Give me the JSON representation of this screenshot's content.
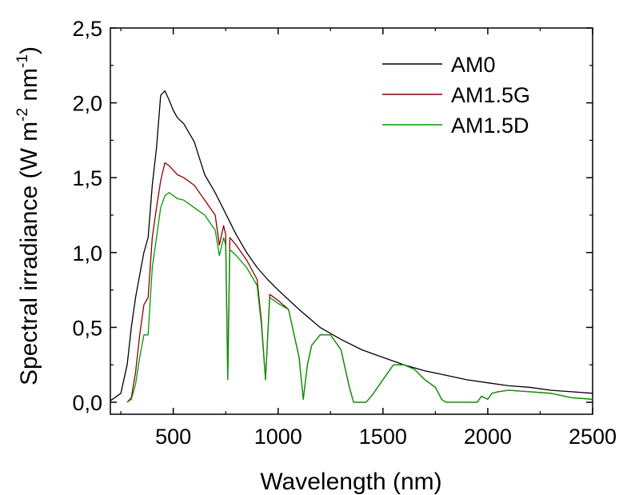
{
  "chart_data": {
    "type": "line",
    "title": "",
    "xlabel": "Wavelength (nm)",
    "ylabel": {
      "prefix": "Spectral irradiance (W m",
      "exp1": "-2",
      "middle": " nm",
      "exp2": "-1",
      "suffix": ")"
    },
    "xlim": [
      200,
      2500
    ],
    "ylim": [
      -0.08,
      2.5
    ],
    "x_ticks": [
      500,
      1000,
      1500,
      2000,
      2500
    ],
    "x_tick_labels": [
      "500",
      "1000",
      "1500",
      "2000",
      "2500"
    ],
    "y_ticks": [
      0.0,
      0.5,
      1.0,
      1.5,
      2.0,
      2.5
    ],
    "y_tick_labels": [
      "0,0",
      "0,5",
      "1,0",
      "1,5",
      "2,0",
      "2,5"
    ],
    "grid": false,
    "legend_position": "top-right",
    "series": [
      {
        "name": "AM0",
        "color": "#000000",
        "x": [
          200,
          250,
          280,
          300,
          320,
          340,
          360,
          380,
          400,
          420,
          440,
          460,
          480,
          500,
          520,
          550,
          600,
          650,
          700,
          750,
          800,
          850,
          900,
          950,
          1000,
          1100,
          1200,
          1300,
          1400,
          1500,
          1600,
          1700,
          1800,
          1900,
          2000,
          2100,
          2200,
          2300,
          2400,
          2500
        ],
        "y": [
          0.01,
          0.06,
          0.25,
          0.5,
          0.7,
          0.85,
          1.0,
          1.1,
          1.45,
          1.7,
          2.05,
          2.08,
          2.02,
          1.95,
          1.9,
          1.86,
          1.74,
          1.52,
          1.4,
          1.26,
          1.12,
          1.0,
          0.9,
          0.82,
          0.75,
          0.62,
          0.5,
          0.42,
          0.35,
          0.3,
          0.25,
          0.21,
          0.18,
          0.15,
          0.13,
          0.11,
          0.1,
          0.08,
          0.07,
          0.06
        ]
      },
      {
        "name": "AM1.5G",
        "color": "#8b0000",
        "x": [
          280,
          300,
          320,
          340,
          360,
          380,
          400,
          420,
          440,
          460,
          480,
          500,
          520,
          550,
          600,
          650,
          700,
          720,
          740,
          750,
          760,
          770,
          800,
          850,
          900,
          920,
          940,
          960,
          1000,
          1050,
          1100,
          1120,
          1140,
          1160,
          1200,
          1250,
          1300,
          1340,
          1360,
          1400,
          1420,
          1450,
          1500,
          1550,
          1600,
          1650,
          1700,
          1750,
          1780,
          1800,
          1950,
          1970,
          2000,
          2020,
          2050,
          2100,
          2200,
          2300,
          2400,
          2500
        ],
        "y": [
          0.0,
          0.03,
          0.2,
          0.45,
          0.65,
          0.7,
          1.1,
          1.3,
          1.48,
          1.6,
          1.58,
          1.55,
          1.52,
          1.5,
          1.45,
          1.35,
          1.25,
          1.05,
          1.18,
          1.12,
          0.15,
          1.1,
          1.05,
          0.95,
          0.82,
          0.55,
          0.15,
          0.72,
          0.68,
          0.62,
          0.3,
          0.02,
          0.25,
          0.38,
          0.45,
          0.45,
          0.35,
          0.1,
          0.0,
          0.0,
          0.0,
          0.05,
          0.15,
          0.25,
          0.25,
          0.22,
          0.15,
          0.1,
          0.02,
          0.0,
          0.0,
          0.04,
          0.02,
          0.06,
          0.07,
          0.08,
          0.07,
          0.06,
          0.03,
          0.02
        ]
      },
      {
        "name": "AM1.5D",
        "color": "#009900",
        "x": [
          280,
          300,
          320,
          340,
          360,
          380,
          400,
          420,
          440,
          460,
          480,
          500,
          520,
          550,
          600,
          650,
          700,
          720,
          740,
          750,
          760,
          770,
          800,
          850,
          900,
          920,
          940,
          960,
          1000,
          1050,
          1100,
          1120,
          1140,
          1160,
          1200,
          1250,
          1300,
          1340,
          1360,
          1400,
          1420,
          1450,
          1500,
          1550,
          1600,
          1650,
          1700,
          1750,
          1780,
          1800,
          1950,
          1970,
          2000,
          2020,
          2050,
          2100,
          2200,
          2300,
          2400,
          2500
        ],
        "y": [
          0.0,
          0.02,
          0.12,
          0.3,
          0.45,
          0.45,
          0.9,
          1.1,
          1.3,
          1.38,
          1.4,
          1.38,
          1.36,
          1.35,
          1.3,
          1.25,
          1.15,
          0.98,
          1.1,
          1.05,
          0.15,
          1.02,
          0.98,
          0.9,
          0.78,
          0.52,
          0.15,
          0.7,
          0.66,
          0.62,
          0.3,
          0.02,
          0.25,
          0.38,
          0.45,
          0.45,
          0.35,
          0.1,
          0.0,
          0.0,
          0.0,
          0.05,
          0.15,
          0.25,
          0.25,
          0.22,
          0.15,
          0.1,
          0.02,
          0.0,
          0.0,
          0.04,
          0.02,
          0.06,
          0.07,
          0.08,
          0.07,
          0.06,
          0.03,
          0.02
        ]
      }
    ]
  }
}
